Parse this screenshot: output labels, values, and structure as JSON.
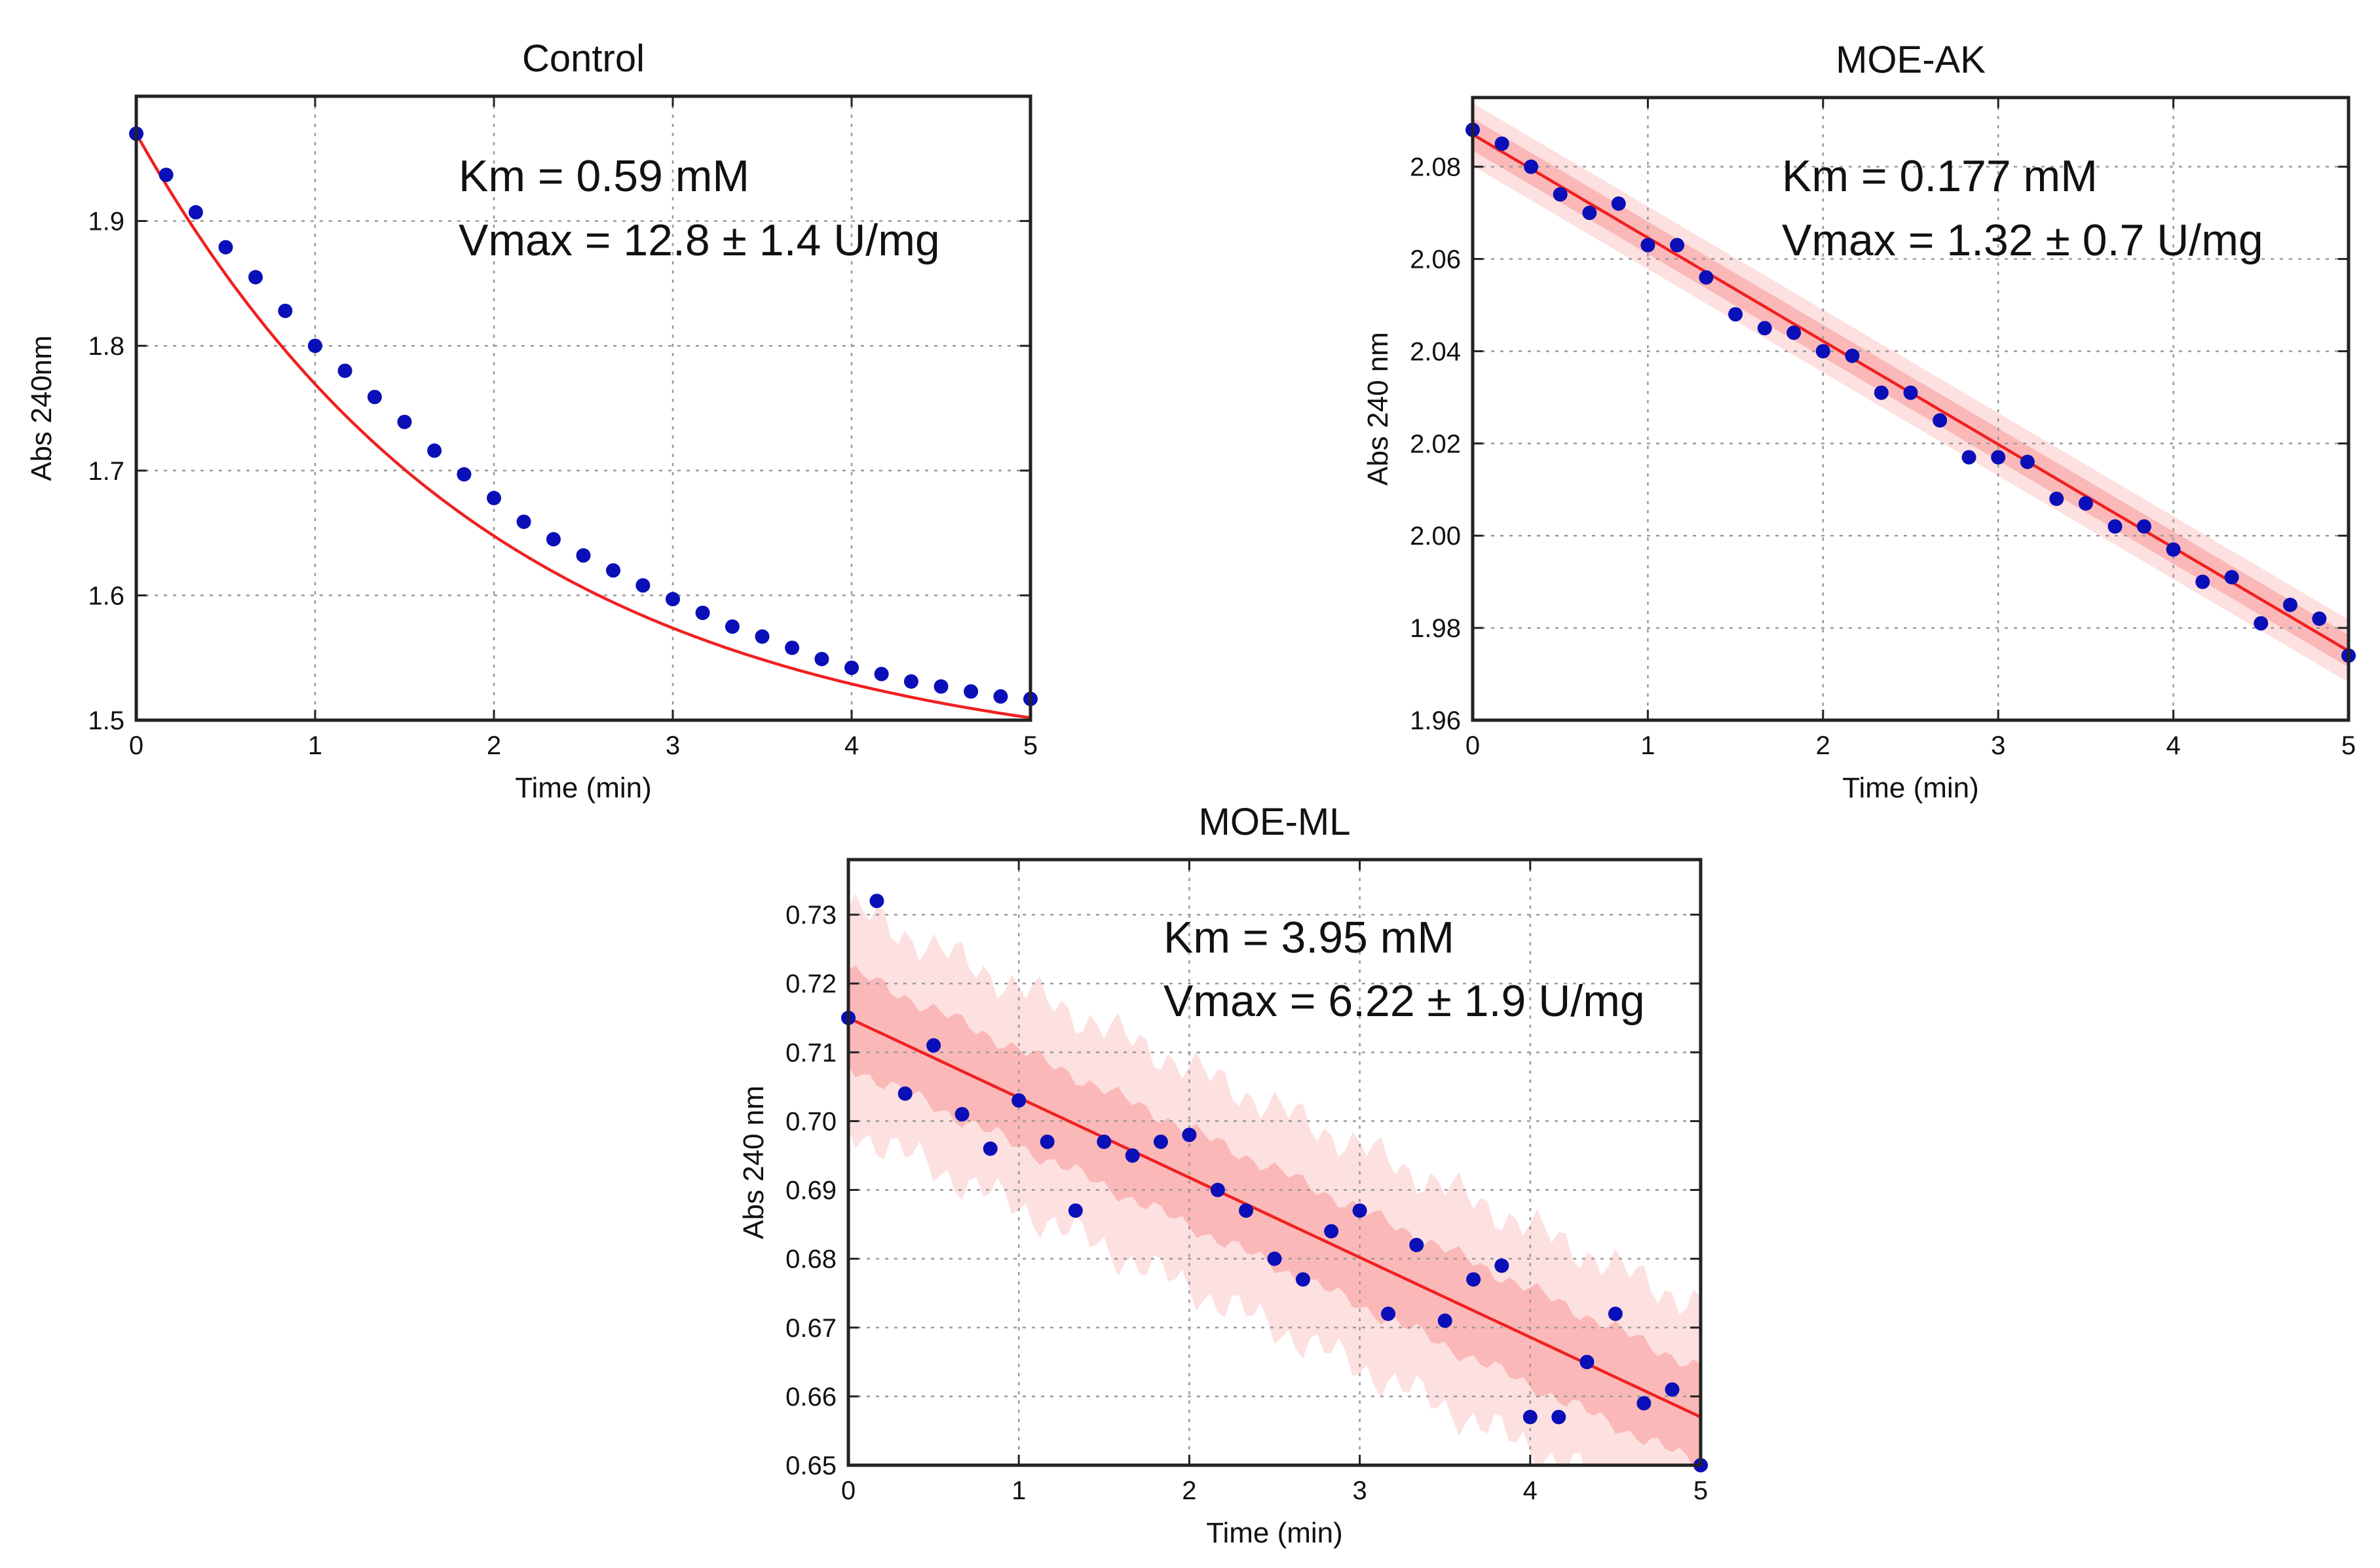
{
  "colors": {
    "point": "#0a0fb8",
    "fit_line": "#f02020",
    "band_outer": "#fde0e0",
    "band_inner": "#fbb8b8",
    "grid": "#9a9a9a",
    "axis": "#222222"
  },
  "chart_data": [
    {
      "id": "control",
      "type": "scatter",
      "title": "Control",
      "xlabel": "Time (min)",
      "ylabel": "Abs 240nm",
      "xlim": [
        0,
        5
      ],
      "ylim": [
        1.5,
        2.0
      ],
      "xticks": [
        0,
        1,
        2,
        3,
        4,
        5
      ],
      "xtick_labels": [
        "0",
        "1",
        "2",
        "3",
        "4",
        "5"
      ],
      "yticks": [
        1.5,
        1.6,
        1.7,
        1.8,
        1.9
      ],
      "ytick_labels": [
        "1.5",
        "1.6",
        "1.7",
        "1.8",
        "1.9"
      ],
      "grid": true,
      "annotations": [
        "Km = 0.59 mM",
        "Vmax = 12.8 ± 1.4 U/mg"
      ],
      "x": [
        0,
        0.167,
        0.333,
        0.5,
        0.667,
        0.833,
        1.0,
        1.167,
        1.333,
        1.5,
        1.667,
        1.833,
        2.0,
        2.167,
        2.333,
        2.5,
        2.667,
        2.833,
        3.0,
        3.167,
        3.333,
        3.5,
        3.667,
        3.833,
        4.0,
        4.167,
        4.333,
        4.5,
        4.667,
        4.833,
        5.0
      ],
      "y": [
        1.97,
        1.937,
        1.907,
        1.879,
        1.855,
        1.828,
        1.8,
        1.78,
        1.759,
        1.739,
        1.716,
        1.697,
        1.678,
        1.659,
        1.645,
        1.632,
        1.62,
        1.608,
        1.597,
        1.586,
        1.575,
        1.567,
        1.558,
        1.549,
        1.542,
        1.537,
        1.531,
        1.527,
        1.523,
        1.519,
        1.517
      ],
      "fit": {
        "kind": "exponential",
        "y_start": 1.97,
        "y_inf": 1.46,
        "k": 0.5
      },
      "band": null
    },
    {
      "id": "moe-ak",
      "type": "scatter",
      "title": "MOE-AK",
      "xlabel": "Time (min)",
      "ylabel": "Abs 240 nm",
      "xlim": [
        0,
        5
      ],
      "ylim": [
        1.96,
        2.095
      ],
      "xticks": [
        0,
        1,
        2,
        3,
        4,
        5
      ],
      "xtick_labels": [
        "0",
        "1",
        "2",
        "3",
        "4",
        "5"
      ],
      "yticks": [
        1.96,
        1.98,
        2.0,
        2.02,
        2.04,
        2.06,
        2.08
      ],
      "ytick_labels": [
        "1.96",
        "1.98",
        "2.00",
        "2.02",
        "2.04",
        "2.06",
        "2.08"
      ],
      "grid": true,
      "annotations": [
        "Km = 0.177 mM",
        "Vmax = 1.32 ± 0.7 U/mg"
      ],
      "x": [
        0,
        0.167,
        0.333,
        0.5,
        0.667,
        0.833,
        1.0,
        1.167,
        1.333,
        1.5,
        1.667,
        1.833,
        2.0,
        2.167,
        2.333,
        2.5,
        2.667,
        2.833,
        3.0,
        3.167,
        3.333,
        3.5,
        3.667,
        3.833,
        4.0,
        4.167,
        4.333,
        4.5,
        4.667,
        4.833,
        5.0
      ],
      "y": [
        2.088,
        2.085,
        2.08,
        2.074,
        2.07,
        2.072,
        2.063,
        2.063,
        2.056,
        2.048,
        2.045,
        2.044,
        2.04,
        2.039,
        2.031,
        2.031,
        2.025,
        2.017,
        2.017,
        2.016,
        2.008,
        2.007,
        2.002,
        2.002,
        1.997,
        1.99,
        1.991,
        1.981,
        1.985,
        1.982,
        1.974
      ],
      "fit": {
        "kind": "linear",
        "y_start": 2.087,
        "y_end": 1.975
      },
      "band": {
        "inner": 0.0035,
        "outer": 0.0068
      }
    },
    {
      "id": "moe-ml",
      "type": "scatter",
      "title": "MOE-ML",
      "xlabel": "Time (min)",
      "ylabel": "Abs 240 nm",
      "xlim": [
        0,
        5
      ],
      "ylim": [
        0.65,
        0.738
      ],
      "xticks": [
        0,
        1,
        2,
        3,
        4,
        5
      ],
      "xtick_labels": [
        "0",
        "1",
        "2",
        "3",
        "4",
        "5"
      ],
      "yticks": [
        0.65,
        0.66,
        0.67,
        0.68,
        0.69,
        0.7,
        0.71,
        0.72,
        0.73
      ],
      "ytick_labels": [
        "0.65",
        "0.66",
        "0.67",
        "0.68",
        "0.69",
        "0.70",
        "0.71",
        "0.72",
        "0.73"
      ],
      "grid": true,
      "annotations": [
        "Km = 3.95 mM",
        "Vmax = 6.22 ± 1.9 U/mg"
      ],
      "x": [
        0,
        0.167,
        0.333,
        0.5,
        0.667,
        0.833,
        1.0,
        1.167,
        1.333,
        1.5,
        1.667,
        1.833,
        2.0,
        2.167,
        2.333,
        2.5,
        2.667,
        2.833,
        3.0,
        3.167,
        3.333,
        3.5,
        3.667,
        3.833,
        4.0,
        4.167,
        4.333,
        4.5,
        4.667,
        4.833,
        5.0
      ],
      "y": [
        0.715,
        0.732,
        0.704,
        0.711,
        0.701,
        0.696,
        0.703,
        0.697,
        0.687,
        0.697,
        0.695,
        0.697,
        0.698,
        0.69,
        0.687,
        0.68,
        0.677,
        0.684,
        0.687,
        0.672,
        0.682,
        0.671,
        0.677,
        0.679,
        0.657,
        0.657,
        0.665,
        0.672,
        0.659,
        0.661,
        0.65
      ],
      "fit": {
        "kind": "linear",
        "y_start": 0.715,
        "y_end": 0.657
      },
      "band": {
        "inner": 0.007,
        "outer": 0.016
      }
    }
  ]
}
